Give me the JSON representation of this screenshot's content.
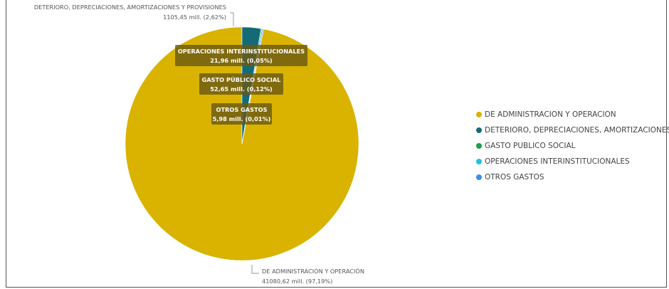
{
  "chart_data": {
    "type": "pie",
    "title": "",
    "slices": [
      {
        "name": "DE ADMINISTRACIÓN Y OPERACIÓN",
        "value": 41080.62,
        "value_label": "41080,62 mill. (97,19%)",
        "percent": 97.19,
        "color": "#D9B300"
      },
      {
        "name": "DETERIORO, DEPRECIACIONES, AMORTIZACIONES Y PROVISIONES",
        "value": 1105.45,
        "value_label": "1105,45 mill. (2,62%)",
        "percent": 2.62,
        "color": "#156B75"
      },
      {
        "name": "GASTO PÚBLICO SOCIAL",
        "value": 52.65,
        "value_label": "52,65 mill. (0,12%)",
        "percent": 0.12,
        "color": "#19A04A"
      },
      {
        "name": "OPERACIONES INTERINSTITUCIONALES",
        "value": 21.96,
        "value_label": "21,96 mill. (0,05%)",
        "percent": 0.05,
        "color": "#1FC3E0"
      },
      {
        "name": "OTROS GASTOS",
        "value": 5.98,
        "value_label": "5,98 mill. (0,01%)",
        "percent": 0.01,
        "color": "#3A8EE8"
      }
    ],
    "legend": {
      "position": "right",
      "items": [
        "DE ADMINISTRACIÓN Y OPERACIÓN",
        "DETERIORO, DEPRECIACIONES, AMORTIZACIONES",
        "GASTO PÚBLICO SOCIAL",
        "OPERACIONES INTERINSTITUCIONALES",
        "OTROS GASTOS"
      ]
    }
  }
}
